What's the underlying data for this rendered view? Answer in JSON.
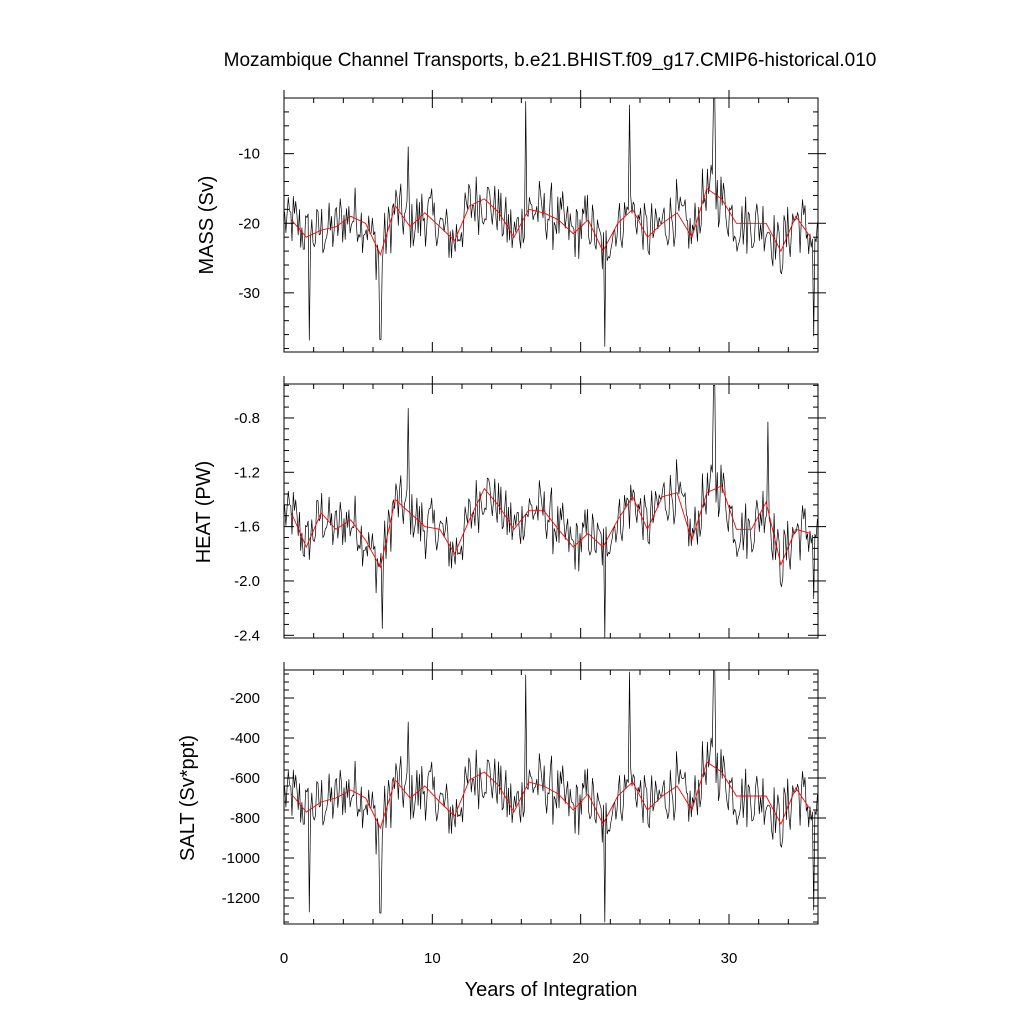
{
  "chart_data": {
    "type": "line",
    "title": "Mozambique Channel Transports, b.e21.BHIST.f09_g17.CMIP6-historical.010",
    "xlabel": "Years of Integration",
    "xlim": [
      0,
      36
    ],
    "x_ticks": [
      0,
      10,
      20,
      30
    ],
    "panels": [
      {
        "ylabel": "MASS (Sv)",
        "ylim": [
          -38.5,
          -2
        ],
        "y_ticks": [
          -10,
          -20,
          -30
        ],
        "series": [
          {
            "color": "#000000",
            "style": "monthly",
            "noise": 5.2,
            "extremes": [
              [
                1.7,
                -36.8
              ],
              [
                6.5,
                -36.7
              ],
              [
                8.4,
                -9.0
              ],
              [
                16.3,
                -2.5
              ],
              [
                21.6,
                -37.7
              ],
              [
                23.3,
                -3.0
              ],
              [
                29.0,
                -2.0
              ],
              [
                35.7,
                -36.2
              ]
            ]
          },
          {
            "color": "#ff0000",
            "style": "annual",
            "x": [
              0.5,
              1.5,
              2.5,
              3.5,
              4.5,
              5.5,
              6.5,
              7.5,
              8.5,
              9.5,
              10.5,
              11.5,
              12.5,
              13.5,
              14.5,
              15.5,
              16.5,
              17.5,
              18.5,
              19.5,
              20.5,
              21.5,
              22.5,
              23.5,
              24.5,
              25.5,
              26.5,
              27.5,
              28.5,
              29.5,
              30.5,
              31.5,
              32.5,
              33.5,
              34.5,
              35.5
            ],
            "y": [
              -19.5,
              -22.0,
              -21.0,
              -20.5,
              -19.0,
              -20.0,
              -24.5,
              -17.5,
              -20.5,
              -18.5,
              -20.5,
              -22.5,
              -17.5,
              -16.5,
              -18.5,
              -22.0,
              -18.0,
              -18.5,
              -19.5,
              -21.5,
              -19.5,
              -24.0,
              -20.0,
              -18.0,
              -22.0,
              -20.0,
              -18.5,
              -22.0,
              -15.0,
              -16.5,
              -20.0,
              -20.0,
              -20.0,
              -24.0,
              -19.0,
              -22.0
            ]
          }
        ]
      },
      {
        "ylabel": "HEAT (PW)",
        "ylim": [
          -2.42,
          -0.55
        ],
        "y_ticks": [
          -0.8,
          -1.2,
          -1.6,
          -2.0,
          -2.4
        ],
        "series": [
          {
            "color": "#000000",
            "style": "monthly",
            "noise": 0.26,
            "extremes": [
              [
                6.6,
                -2.35
              ],
              [
                8.4,
                -0.73
              ],
              [
                21.6,
                -2.42
              ],
              [
                29.0,
                -0.56
              ],
              [
                32.6,
                -0.83
              ],
              [
                35.7,
                -2.13
              ]
            ]
          },
          {
            "color": "#ff0000",
            "style": "annual",
            "x": [
              0.5,
              1.5,
              2.5,
              3.5,
              4.5,
              5.5,
              6.5,
              7.5,
              8.5,
              9.5,
              10.5,
              11.5,
              12.5,
              13.5,
              14.5,
              15.5,
              16.5,
              17.5,
              18.5,
              19.5,
              20.5,
              21.5,
              22.5,
              23.5,
              24.5,
              25.5,
              26.5,
              27.5,
              28.5,
              29.5,
              30.5,
              31.5,
              32.5,
              33.5,
              34.5,
              35.5
            ],
            "y": [
              -1.5,
              -1.75,
              -1.5,
              -1.62,
              -1.55,
              -1.7,
              -1.9,
              -1.4,
              -1.5,
              -1.6,
              -1.62,
              -1.8,
              -1.55,
              -1.32,
              -1.45,
              -1.62,
              -1.48,
              -1.48,
              -1.62,
              -1.75,
              -1.65,
              -1.75,
              -1.55,
              -1.38,
              -1.62,
              -1.38,
              -1.35,
              -1.7,
              -1.35,
              -1.3,
              -1.62,
              -1.62,
              -1.42,
              -1.88,
              -1.62,
              -1.65
            ]
          }
        ]
      },
      {
        "ylabel": "SALT (Sv*ppt)",
        "ylim": [
          -1330,
          -60
        ],
        "y_ticks": [
          -200,
          -400,
          -600,
          -800,
          -1000,
          -1200
        ],
        "series": [
          {
            "color": "#000000",
            "style": "monthly",
            "noise": 185,
            "extremes": [
              [
                1.7,
                -1270
              ],
              [
                6.5,
                -1275
              ],
              [
                8.4,
                -320
              ],
              [
                16.3,
                -85
              ],
              [
                21.6,
                -1320
              ],
              [
                23.3,
                -70
              ],
              [
                29.0,
                -60
              ],
              [
                35.7,
                -1260
              ]
            ]
          },
          {
            "color": "#ff0000",
            "style": "annual",
            "x": [
              0.5,
              1.5,
              2.5,
              3.5,
              4.5,
              5.5,
              6.5,
              7.5,
              8.5,
              9.5,
              10.5,
              11.5,
              12.5,
              13.5,
              14.5,
              15.5,
              16.5,
              17.5,
              18.5,
              19.5,
              20.5,
              21.5,
              22.5,
              23.5,
              24.5,
              25.5,
              26.5,
              27.5,
              28.5,
              29.5,
              30.5,
              31.5,
              32.5,
              33.5,
              34.5,
              35.5
            ],
            "y": [
              -680,
              -770,
              -720,
              -700,
              -660,
              -700,
              -850,
              -610,
              -700,
              -640,
              -720,
              -790,
              -610,
              -570,
              -640,
              -770,
              -620,
              -640,
              -680,
              -760,
              -680,
              -830,
              -690,
              -620,
              -760,
              -690,
              -640,
              -760,
              -520,
              -570,
              -690,
              -690,
              -690,
              -830,
              -650,
              -760
            ]
          }
        ]
      }
    ]
  }
}
